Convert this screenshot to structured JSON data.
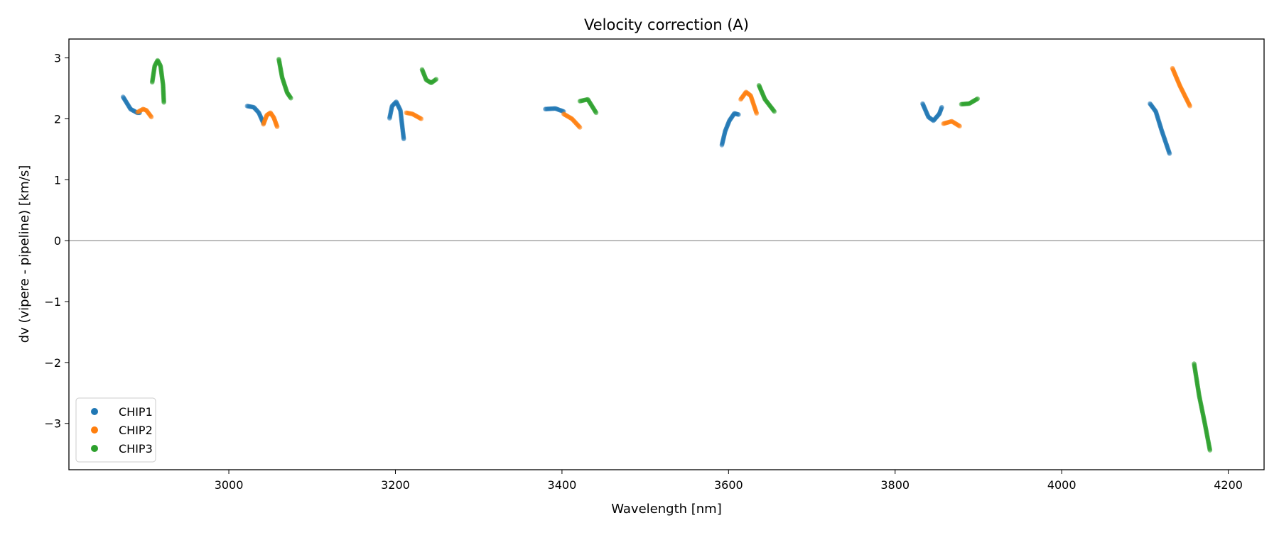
{
  "chart_data": {
    "type": "scatter",
    "title": "Velocity correction (A)",
    "xlabel": "Wavelength [nm]",
    "ylabel": "dv (vipere - pipeline) [km/s]",
    "xlim": [
      2808,
      4243
    ],
    "ylim": [
      -3.76,
      3.31
    ],
    "xticks": [
      3000,
      3200,
      3400,
      3600,
      3800,
      4000,
      4200
    ],
    "yticks": [
      -3,
      -2,
      -1,
      0,
      1,
      2,
      3
    ],
    "ytick_labels": [
      "−3",
      "−2",
      "−1",
      "0",
      "1",
      "2",
      "3"
    ],
    "hline": 0,
    "legend_position": "lower-left",
    "series": [
      {
        "name": "CHIP1",
        "color": "#1f77b4",
        "segments": [
          [
            [
              2873,
              2.36
            ],
            [
              2882,
              2.16
            ],
            [
              2890,
              2.1
            ],
            [
              2893,
              2.1
            ]
          ],
          [
            [
              3022,
              2.21
            ],
            [
              3030,
              2.19
            ],
            [
              3036,
              2.1
            ],
            [
              3041.5,
              1.93
            ]
          ],
          [
            [
              3193,
              2.01
            ],
            [
              3196,
              2.21
            ],
            [
              3201,
              2.28
            ],
            [
              3206,
              2.14
            ],
            [
              3210,
              1.67
            ]
          ],
          [
            [
              3380,
              2.16
            ],
            [
              3392,
              2.17
            ],
            [
              3402,
              2.12
            ]
          ],
          [
            [
              3592,
              1.57
            ],
            [
              3596,
              1.8
            ],
            [
              3601,
              1.97
            ],
            [
              3607,
              2.09
            ],
            [
              3612,
              2.07
            ]
          ],
          [
            [
              3833,
              2.25
            ],
            [
              3840,
              2.03
            ],
            [
              3846,
              1.97
            ],
            [
              3853,
              2.08
            ],
            [
              3856,
              2.19
            ]
          ],
          [
            [
              4106,
              2.25
            ],
            [
              4113,
              2.12
            ],
            [
              4120,
              1.81
            ],
            [
              4129.5,
              1.43
            ]
          ]
        ]
      },
      {
        "name": "CHIP2",
        "color": "#ff7f0e",
        "segments": [
          [
            [
              2890.5,
              2.11
            ],
            [
              2897,
              2.16
            ],
            [
              2901,
              2.14
            ],
            [
              2907,
              2.03
            ]
          ],
          [
            [
              3041.5,
              1.91
            ],
            [
              3045.6,
              2.06
            ],
            [
              3050,
              2.1
            ],
            [
              3054,
              2.02
            ],
            [
              3058,
              1.87
            ]
          ],
          [
            [
              3213,
              2.1
            ],
            [
              3220.5,
              2.08
            ],
            [
              3231,
              2.0
            ]
          ],
          [
            [
              3402,
              2.08
            ],
            [
              3412,
              2.0
            ],
            [
              3421.5,
              1.86
            ]
          ],
          [
            [
              3614.6,
              2.32
            ],
            [
              3621,
              2.44
            ],
            [
              3626.6,
              2.38
            ],
            [
              3633.7,
              2.09
            ]
          ],
          [
            [
              3858,
              1.92
            ],
            [
              3868,
              1.96
            ],
            [
              3877.5,
              1.88
            ]
          ],
          [
            [
              4133,
              2.83
            ],
            [
              4142,
              2.54
            ],
            [
              4154,
              2.21
            ]
          ]
        ]
      },
      {
        "name": "CHIP3",
        "color": "#2ca02c",
        "segments": [
          [
            [
              2908,
              2.6
            ],
            [
              2911,
              2.87
            ],
            [
              2914.5,
              2.96
            ],
            [
              2918,
              2.87
            ],
            [
              2921,
              2.56
            ],
            [
              2922,
              2.27
            ]
          ],
          [
            [
              3060,
              2.98
            ],
            [
              3064,
              2.68
            ],
            [
              3070,
              2.43
            ],
            [
              3074.5,
              2.34
            ]
          ],
          [
            [
              3232,
              2.81
            ],
            [
              3237,
              2.64
            ],
            [
              3243,
              2.59
            ],
            [
              3249,
              2.65
            ]
          ],
          [
            [
              3421.5,
              2.29
            ],
            [
              3431,
              2.32
            ],
            [
              3441,
              2.1
            ]
          ],
          [
            [
              3636.5,
              2.55
            ],
            [
              3643.7,
              2.32
            ],
            [
              3655,
              2.12
            ]
          ],
          [
            [
              3879.5,
              2.24
            ],
            [
              3889,
              2.25
            ],
            [
              3899,
              2.33
            ]
          ],
          [
            [
              4159,
              -2.02
            ],
            [
              4165,
              -2.54
            ],
            [
              4172,
              -3.01
            ],
            [
              4178,
              -3.44
            ]
          ]
        ]
      }
    ]
  }
}
